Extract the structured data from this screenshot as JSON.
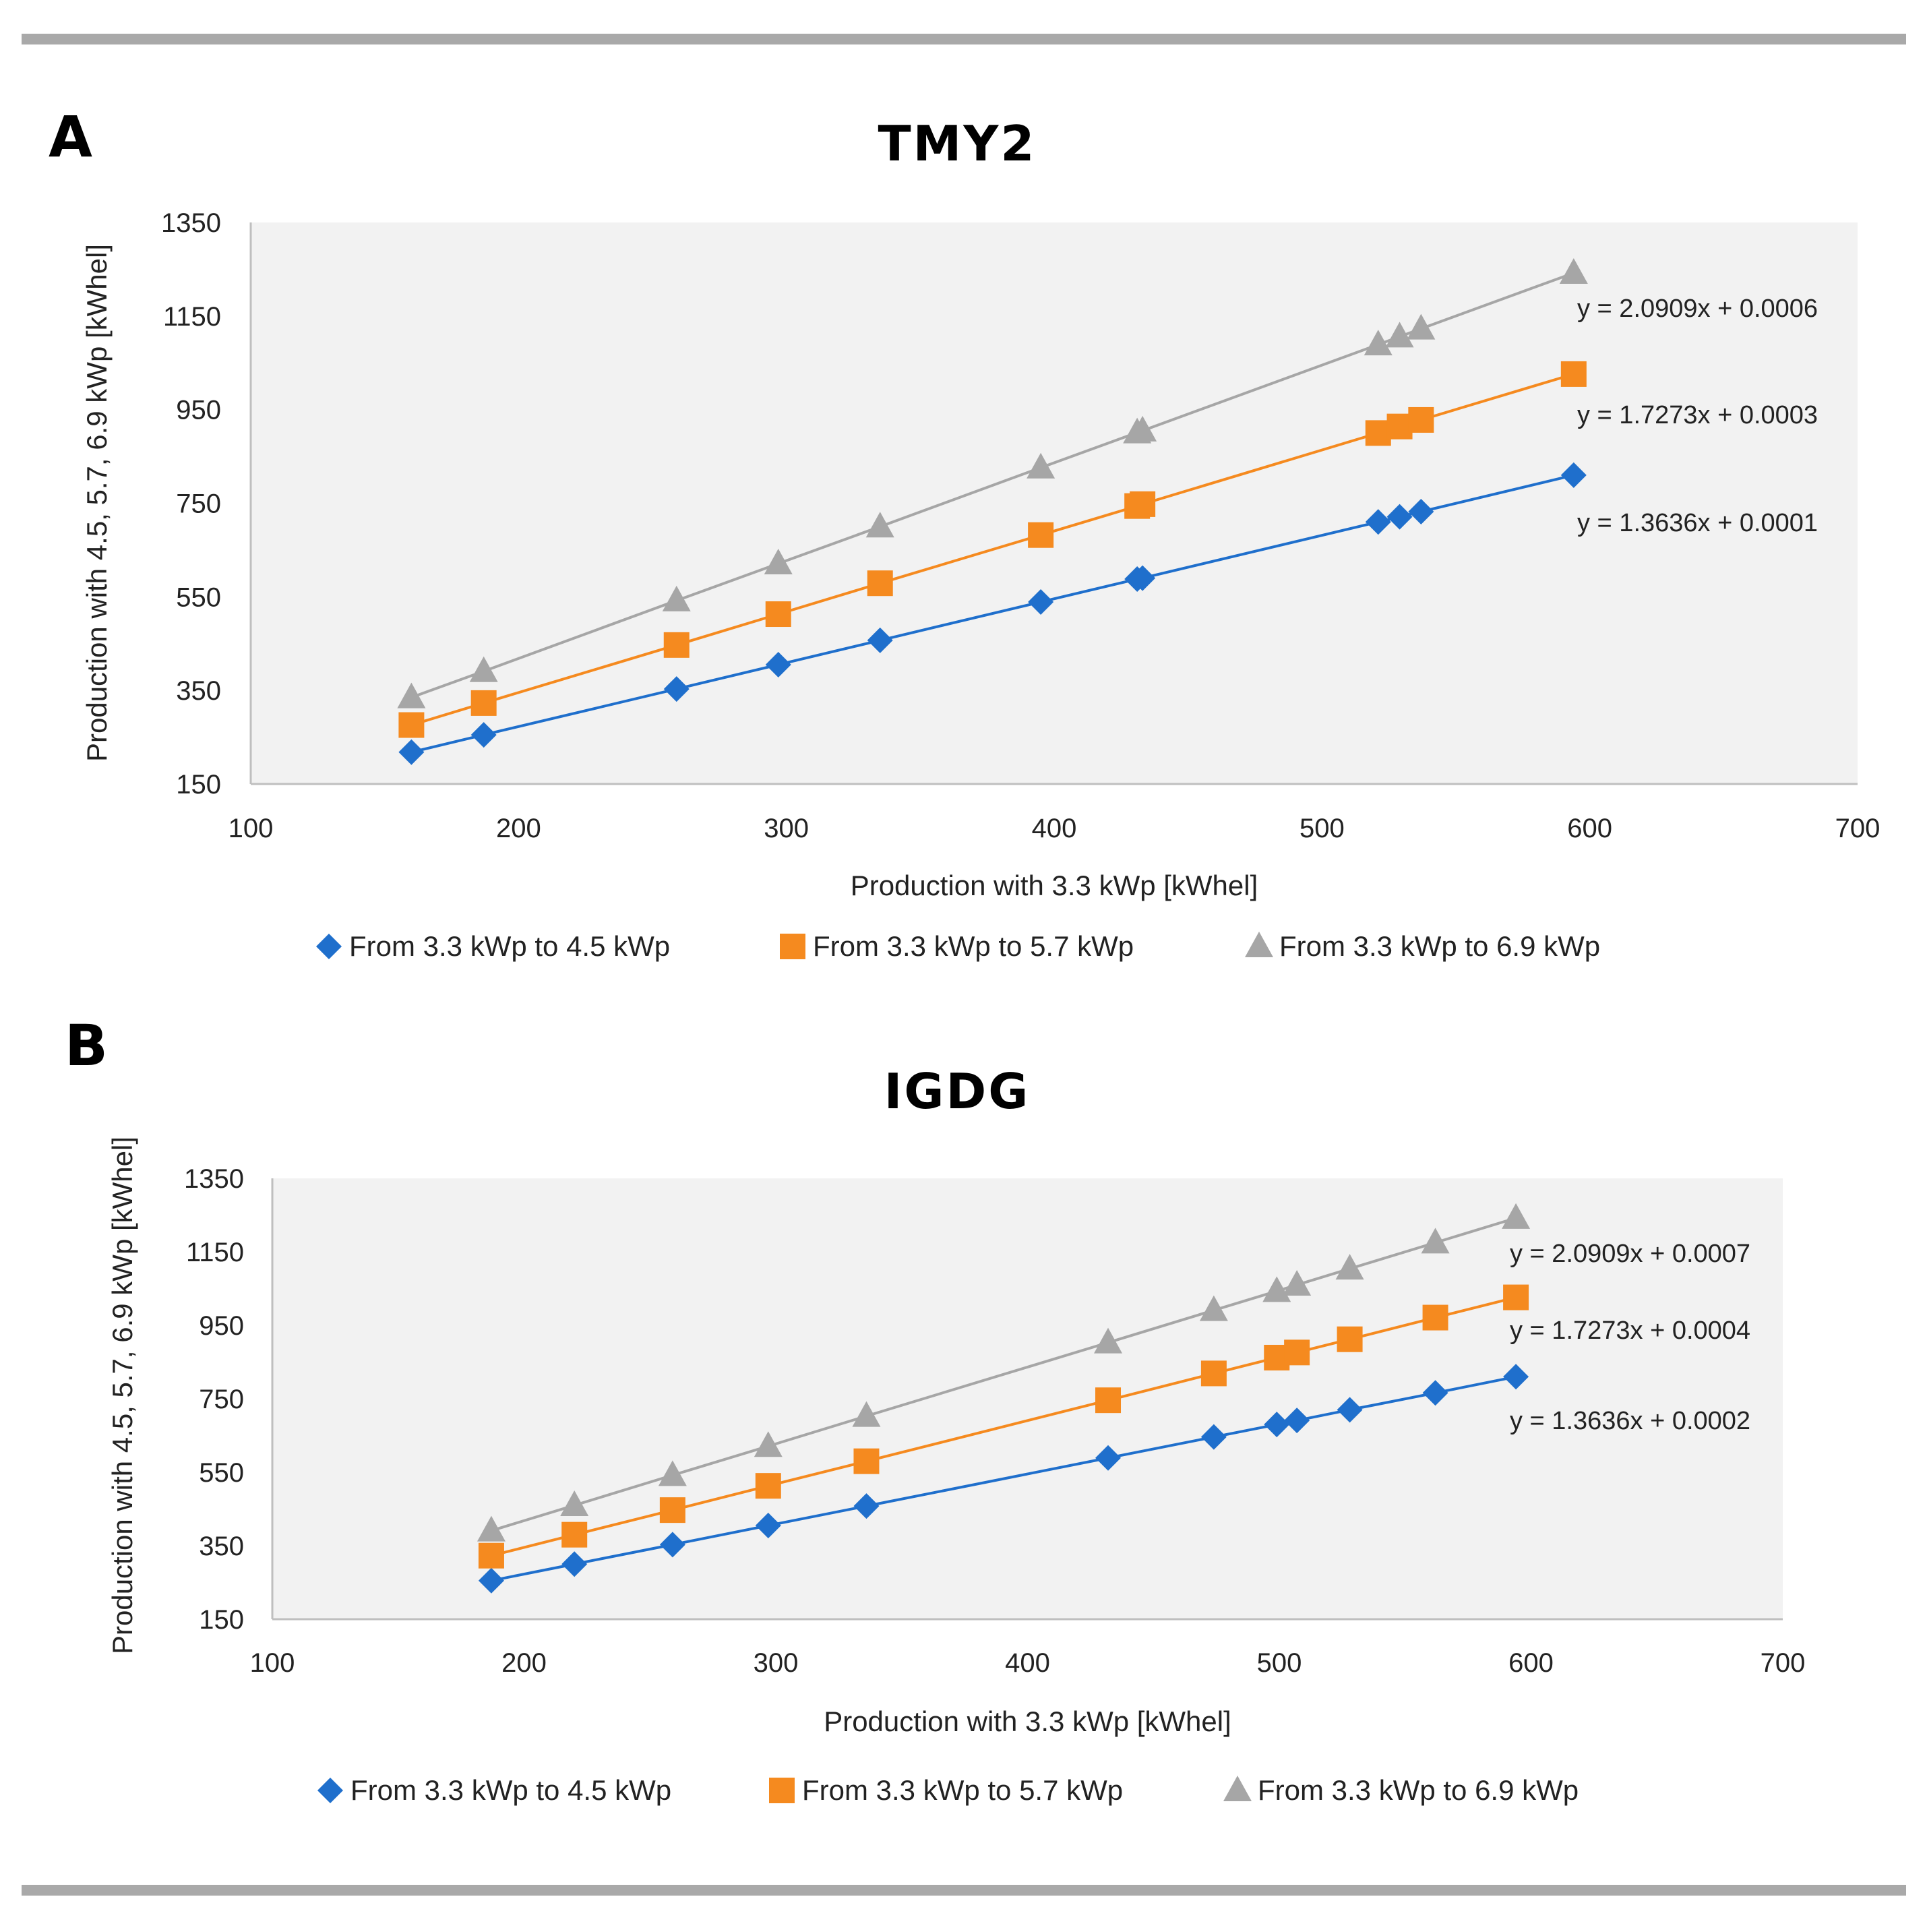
{
  "figure": {
    "border_color": "#a9a9a9"
  },
  "chart_data": [
    {
      "type": "scatter",
      "panel_letter": "A",
      "title": "TMY2",
      "xlabel": "Production with 3.3 kWp [kWhel]",
      "ylabel": "Production with 4.5, 5.7, 6.9 kWp [kWhel]",
      "xlim": [
        100,
        700
      ],
      "ylim": [
        150,
        1350
      ],
      "x_ticks": [
        100,
        200,
        300,
        400,
        500,
        600,
        700
      ],
      "y_ticks": [
        150,
        350,
        550,
        750,
        950,
        1150,
        1350
      ],
      "grid": false,
      "plot_background": "#f2f2f2",
      "legend_position": "bottom",
      "x": [
        160,
        187,
        259,
        297,
        335,
        395,
        431,
        433,
        521,
        529,
        537,
        594
      ],
      "series": [
        {
          "name": "From 3.3 kWp to 4.5 kWp",
          "marker": "diamond",
          "color": "#1f6fcc",
          "values": [
            218,
            255,
            353,
            405,
            457,
            539,
            588,
            590,
            710,
            721,
            732,
            810
          ],
          "trendline": "y = 1.3636x + 0.0001"
        },
        {
          "name": "From 3.3 kWp to 5.7 kWp",
          "marker": "square",
          "color": "#f58a1f",
          "values": [
            276,
            323,
            447,
            513,
            579,
            682,
            744,
            748,
            900,
            914,
            928,
            1026
          ],
          "trendline": "y = 1.7273x + 0.0003"
        },
        {
          "name": "From 3.3 kWp to 6.9 kWp",
          "marker": "triangle",
          "color": "#a6a6a6",
          "values": [
            335,
            391,
            542,
            621,
            700,
            826,
            901,
            905,
            1089,
            1106,
            1123,
            1242
          ],
          "trendline": "y = 2.0909x + 0.0006"
        }
      ]
    },
    {
      "type": "scatter",
      "panel_letter": "B",
      "title": "IGDG",
      "xlabel": "Production with 3.3 kWp [kWhel]",
      "ylabel": "Production with 4.5, 5.7, 6.9 kWp [kWhel]",
      "xlim": [
        100,
        700
      ],
      "ylim": [
        150,
        1350
      ],
      "x_ticks": [
        100,
        200,
        300,
        400,
        500,
        600,
        700
      ],
      "y_ticks": [
        150,
        350,
        550,
        750,
        950,
        1150,
        1350
      ],
      "grid": false,
      "plot_background": "#f2f2f2",
      "legend_position": "bottom",
      "x": [
        187,
        220,
        259,
        297,
        336,
        432,
        474,
        499,
        507,
        528,
        562,
        594
      ],
      "series": [
        {
          "name": "From 3.3 kWp to 4.5 kWp",
          "marker": "diamond",
          "color": "#1f6fcc",
          "values": [
            255,
            300,
            353,
            405,
            458,
            589,
            646,
            680,
            691,
            720,
            766,
            810
          ],
          "trendline": "y = 1.3636x + 0.0002"
        },
        {
          "name": "From 3.3 kWp to 5.7 kWp",
          "marker": "square",
          "color": "#f58a1f",
          "values": [
            323,
            380,
            447,
            513,
            580,
            746,
            819,
            862,
            876,
            912,
            971,
            1026
          ],
          "trendline": "y = 1.7273x + 0.0004"
        },
        {
          "name": "From 3.3 kWp to 6.9 kWp",
          "marker": "triangle",
          "color": "#a6a6a6",
          "values": [
            391,
            460,
            542,
            621,
            703,
            903,
            991,
            1043,
            1060,
            1104,
            1175,
            1242
          ],
          "trendline": "y = 2.0909x + 0.0007"
        }
      ]
    }
  ]
}
